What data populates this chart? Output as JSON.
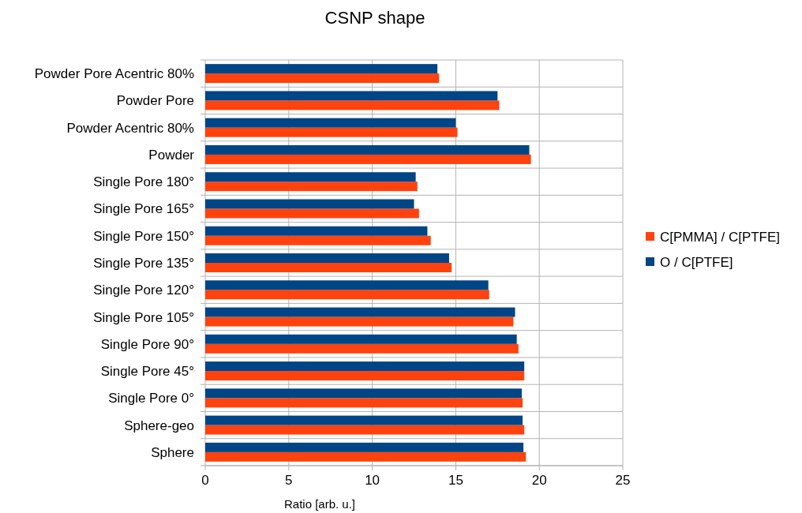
{
  "chart_data": {
    "type": "bar",
    "orientation": "horizontal",
    "title": "CSNP shape",
    "xlabel": "Ratio [arb. u.]",
    "categories": [
      "Powder Pore Acentric 80%",
      "Powder Pore",
      "Powder Acentric 80%",
      "Powder",
      "Single Pore 180°",
      "Single Pore 165°",
      "Single Pore 150°",
      "Single Pore 135°",
      "Single Pore 120°",
      "Single Pore 105°",
      "Single Pore 90°",
      "Single Pore 45°",
      "Single Pore 0°",
      "Sphere-geo",
      "Sphere"
    ],
    "series": [
      {
        "name": "C[PMMA] / C[PTFE]",
        "color": "#ff420e",
        "values": [
          14.0,
          17.6,
          15.1,
          19.5,
          12.7,
          12.8,
          13.5,
          14.75,
          17.0,
          18.45,
          18.75,
          19.1,
          19.0,
          19.1,
          19.2
        ]
      },
      {
        "name": "O / C[PTFE]",
        "color": "#004586",
        "values": [
          13.9,
          17.5,
          15.0,
          19.4,
          12.6,
          12.5,
          13.3,
          14.6,
          16.95,
          18.55,
          18.65,
          19.1,
          18.95,
          19.0,
          19.05
        ]
      }
    ],
    "xlim": [
      0,
      25
    ],
    "xticks": [
      0,
      5,
      10,
      15,
      20,
      25
    ],
    "grid": true,
    "legend": "right"
  }
}
